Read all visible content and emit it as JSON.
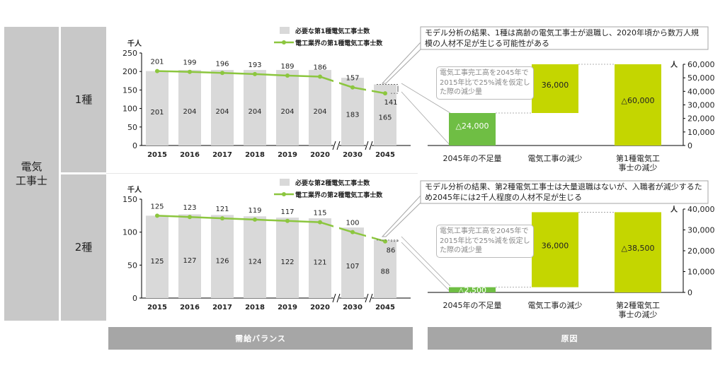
{
  "row_header": {
    "main_line1": "電気",
    "main_line2": "工事士",
    "type1": "1種",
    "type2": "2種"
  },
  "footer": {
    "left": "需給バランス",
    "right": "原因"
  },
  "unit_thousand": "千人",
  "unit_person": "人",
  "notes": {
    "type1": "モデル分析の結果、1種は高齢の電気工事士が退職し、2020年頃から数万人規模の人材不足が生じる可能性がある",
    "type2": "モデル分析の結果、第2種電気工事士は大量退職はないが、入職者が減少するため2045年には2千人程度の人材不足が生じる",
    "assumption": "電気工事完工高を2045年で2015年比で25%減を仮定した際の減少量"
  },
  "colors": {
    "bar_gray": "#d9d9d9",
    "line_green": "#8cc63f",
    "bar_green": "#c4d600",
    "bar_dark_green": "#6fbe44",
    "header_gray": "#c8c8c8",
    "footer_gray": "#a6a6a6"
  },
  "chart_data": [
    {
      "type": "bar",
      "id": "type1-balance",
      "categories": [
        "2015",
        "2016",
        "2017",
        "2018",
        "2019",
        "2020",
        "2030",
        "2045"
      ],
      "series": [
        {
          "name": "必要な第1種電気工事士数",
          "kind": "bar",
          "values": [
            201,
            204,
            204,
            204,
            204,
            204,
            183,
            165
          ]
        },
        {
          "name": "電工業界の第1種電気工事士数",
          "kind": "line",
          "values": [
            201,
            199,
            196,
            193,
            189,
            186,
            157,
            141
          ]
        }
      ],
      "bar_labels": [
        "201",
        "204",
        "204",
        "204",
        "204",
        "204",
        "183",
        "165"
      ],
      "line_labels": [
        "201",
        "199",
        "196",
        "193",
        "189",
        "186",
        "157",
        "141"
      ],
      "ylim": [
        0,
        250
      ],
      "yticks": [
        "0",
        "50",
        "100",
        "150",
        "200",
        "250"
      ],
      "ylabel": "千人",
      "legend_placement": "top-right",
      "axis_break_after": "2020"
    },
    {
      "type": "bar",
      "id": "type1-cause",
      "categories": [
        "2045年の不足量",
        "電気工事の減少",
        "第1種電気工事士の減少"
      ],
      "category_lines": [
        [
          "2045年の不足量"
        ],
        [
          "電気工事の減少"
        ],
        [
          "第1種電気工",
          "事士の減少"
        ]
      ],
      "waterfall": [
        {
          "from": 0,
          "to": 24000
        },
        {
          "from": 24000,
          "to": 60000
        },
        {
          "from": 0,
          "to": 60000
        }
      ],
      "labels": [
        "△24,000",
        "36,000",
        "△60,000"
      ],
      "ylim": [
        0,
        60000
      ],
      "yticks": [
        "0",
        "10,000",
        "20,000",
        "30,000",
        "40,000",
        "50,000",
        "60,000"
      ],
      "ylabel": "人"
    },
    {
      "type": "bar",
      "id": "type2-balance",
      "categories": [
        "2015",
        "2016",
        "2017",
        "2018",
        "2019",
        "2020",
        "2030",
        "2045"
      ],
      "series": [
        {
          "name": "必要な第2種電気工事士数",
          "kind": "bar",
          "values": [
            125,
            127,
            126,
            124,
            122,
            121,
            107,
            88
          ]
        },
        {
          "name": "電工業界の第2種電気工事士数",
          "kind": "line",
          "values": [
            125,
            123,
            121,
            119,
            117,
            115,
            100,
            86
          ]
        }
      ],
      "bar_labels": [
        "125",
        "127",
        "126",
        "124",
        "122",
        "121",
        "107",
        "88"
      ],
      "line_labels": [
        "125",
        "123",
        "121",
        "119",
        "117",
        "115",
        "100",
        "86"
      ],
      "ylim": [
        0,
        150
      ],
      "yticks": [
        "0",
        "50",
        "100",
        "150"
      ],
      "ylabel": "千人",
      "legend_placement": "top-right",
      "axis_break_after": "2020"
    },
    {
      "type": "bar",
      "id": "type2-cause",
      "categories": [
        "2045年の不足量",
        "電気工事の減少",
        "第2種電気工事士の減少"
      ],
      "category_lines": [
        [
          "2045年の不足量"
        ],
        [
          "電気工事の減少"
        ],
        [
          "第2種電気工",
          "事士の減少"
        ]
      ],
      "waterfall": [
        {
          "from": 0,
          "to": 2500
        },
        {
          "from": 2500,
          "to": 38500
        },
        {
          "from": 0,
          "to": 38500
        }
      ],
      "labels": [
        "△2,500",
        "36,000",
        "△38,500"
      ],
      "ylim": [
        0,
        40000
      ],
      "yticks": [
        "0",
        "10,000",
        "20,000",
        "30,000",
        "40,000"
      ],
      "ylabel": "人"
    }
  ]
}
